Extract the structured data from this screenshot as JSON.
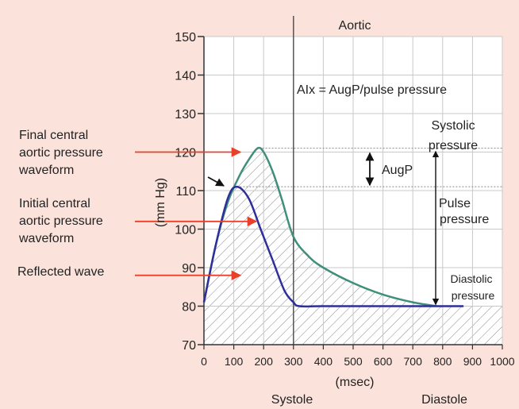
{
  "colors": {
    "background": "#fbe3dc",
    "plot_background": "#ffffff",
    "grid": "#c9c9c9",
    "final_curve": "#3f8f7a",
    "initial_curve": "#2e2f9a",
    "arrow_red": "#e8402a",
    "text": "#222222"
  },
  "chart_data": {
    "type": "line",
    "title": "Aortic",
    "xlabel": "(msec)",
    "ylabel": "(mm Hg)",
    "xlim": [
      0,
      1000
    ],
    "ylim": [
      70,
      150
    ],
    "x_ticks": [
      "0",
      "100",
      "200",
      "300",
      "400",
      "500",
      "600",
      "700",
      "800",
      "900",
      "1000"
    ],
    "y_ticks": [
      "70",
      "80",
      "90",
      "100",
      "110",
      "120",
      "130",
      "140",
      "150"
    ],
    "grid": true,
    "phases": [
      "Systole",
      "Diastole"
    ],
    "series": [
      {
        "name": "Final central aortic pressure waveform",
        "x": [
          0,
          40,
          80,
          120,
          150,
          180,
          200,
          230,
          260,
          300,
          350,
          400,
          500,
          600,
          700,
          780
        ],
        "y": [
          81,
          96,
          107,
          114,
          118,
          121,
          120,
          115,
          108,
          98,
          93,
          90,
          86,
          83,
          81,
          80
        ]
      },
      {
        "name": "Initial central aortic pressure waveform",
        "x": [
          0,
          40,
          80,
          110,
          150,
          190,
          230,
          270,
          300,
          320,
          400,
          600,
          800,
          870
        ],
        "y": [
          81,
          96,
          108,
          111,
          108,
          100,
          92,
          84,
          81,
          80,
          80,
          80,
          80,
          80
        ]
      }
    ],
    "annotations": {
      "formula": "AIx = AugP/pulse pressure",
      "augp": "AugP",
      "systolic": [
        "Systolic",
        "pressure"
      ],
      "pulse": [
        "Pulse",
        "pressure"
      ],
      "diastolic": [
        "Diastolic",
        "pressure"
      ]
    },
    "left_labels": {
      "final": [
        "Final central",
        "aortic pressure",
        "waveform"
      ],
      "initial": [
        "Initial central",
        "aortic pressure",
        "waveform"
      ],
      "reflected": "Reflected wave"
    }
  }
}
